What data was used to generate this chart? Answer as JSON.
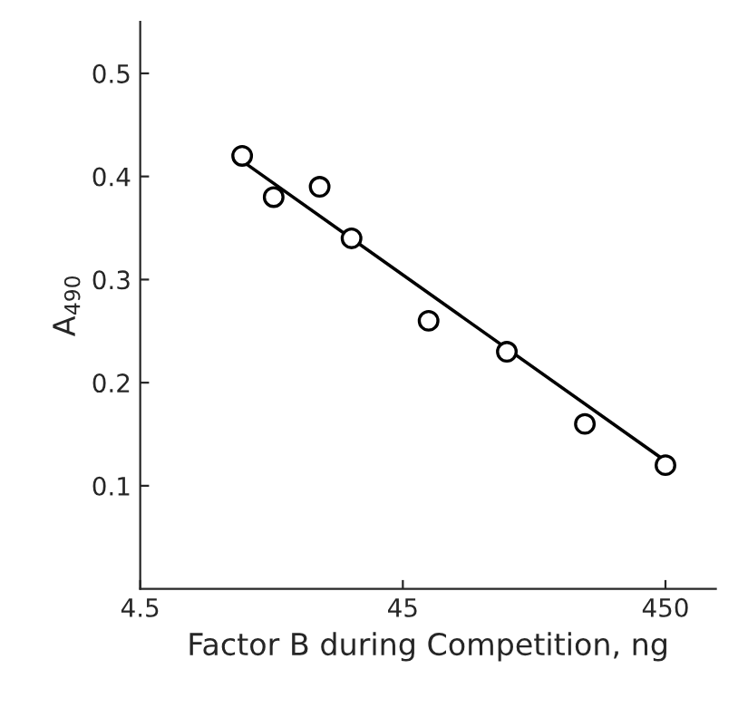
{
  "chart_data": {
    "type": "scatter",
    "xlabel": "Factor B during Competition, ng",
    "ylabel": "A$_{490}$",
    "log": "x",
    "xlim": [
      4.5,
      700
    ],
    "xticks": [
      4.5,
      45,
      450
    ],
    "ylim": [
      0,
      0.55
    ],
    "yticks": [
      0.1,
      0.2,
      0.3,
      0.4,
      0.5
    ],
    "grid": false,
    "legend": false,
    "series": [
      {
        "color": "#000000",
        "marker": "circle",
        "x": [
          11.0,
          14.5,
          21.7,
          28.7,
          56.4,
          112,
          222,
          450
        ],
        "values": [
          0.42,
          0.38,
          0.39,
          0.34,
          0.26,
          0.23,
          0.16,
          0.12
        ]
      },
      {
        "type": "line",
        "color": "#000000",
        "marker": "none",
        "line_style": "solid",
        "x": [
          11.0,
          450
        ],
        "values": [
          0.415,
          0.124
        ]
      }
    ]
  }
}
